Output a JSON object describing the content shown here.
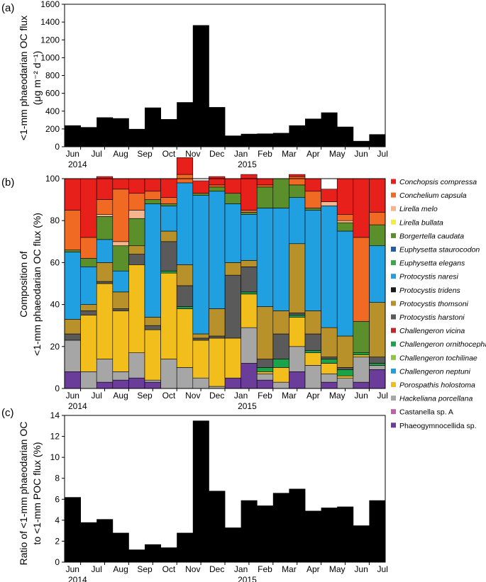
{
  "chart_data": [
    {
      "type": "bar",
      "panel_label": "(a)",
      "ylabel_lines": [
        "<1-mm phaeodarian OC flux",
        "(μg m⁻² d⁻¹)"
      ],
      "ylim": [
        0,
        1600
      ],
      "yticks": [
        0,
        200,
        400,
        600,
        800,
        1000,
        1200,
        1400,
        1600
      ],
      "xtick_labels": [
        "Jun",
        "Jul",
        "Aug",
        "Sep",
        "Oct",
        "Nov",
        "Dec",
        "Jan",
        "Feb",
        "Mar",
        "Apr",
        "May",
        "Jun",
        "Jul"
      ],
      "year_labels": [
        "2014",
        "2015"
      ],
      "periods": [
        {
          "start": 0.0,
          "end": 0.75,
          "value": 240
        },
        {
          "start": 0.75,
          "end": 1.5,
          "value": 220
        },
        {
          "start": 1.5,
          "end": 2.25,
          "value": 330
        },
        {
          "start": 2.25,
          "end": 3.0,
          "value": 320
        },
        {
          "start": 3.0,
          "end": 3.75,
          "value": 200
        },
        {
          "start": 3.75,
          "end": 4.5,
          "value": 440
        },
        {
          "start": 4.5,
          "end": 5.25,
          "value": 310
        },
        {
          "start": 5.25,
          "end": 6.0,
          "value": 500
        },
        {
          "start": 6.0,
          "end": 6.75,
          "value": 1365
        },
        {
          "start": 6.75,
          "end": 7.5,
          "value": 445
        },
        {
          "start": 7.5,
          "end": 8.25,
          "value": 125
        },
        {
          "start": 8.25,
          "end": 9.0,
          "value": 145
        },
        {
          "start": 9.0,
          "end": 9.75,
          "value": 148
        },
        {
          "start": 9.75,
          "end": 10.5,
          "value": 155
        },
        {
          "start": 10.5,
          "end": 11.25,
          "value": 240
        },
        {
          "start": 11.25,
          "end": 12.0,
          "value": 315
        },
        {
          "start": 12.0,
          "end": 12.75,
          "value": 385
        },
        {
          "start": 12.75,
          "end": 13.5,
          "value": 225
        },
        {
          "start": 13.5,
          "end": 14.25,
          "value": 65
        },
        {
          "start": 14.25,
          "end": 15.0,
          "value": 140
        }
      ]
    },
    {
      "type": "stacked-area",
      "panel_label": "(b)",
      "ylabel_lines": [
        "Composition of",
        "<1-mm phaeodarian OC flux (%)"
      ],
      "ylim": [
        0,
        100
      ],
      "yticks": [
        0,
        20,
        40,
        60,
        80,
        100
      ],
      "xtick_labels": [
        "Jun",
        "Jul",
        "Aug",
        "Sep",
        "Oct",
        "Nov",
        "Dec",
        "Jan",
        "Feb",
        "Mar",
        "Apr",
        "May",
        "Jun",
        "Jul"
      ],
      "year_labels": [
        "2014",
        "2015"
      ],
      "period_bounds": [
        0,
        0.75,
        1.5,
        2.25,
        3,
        3.75,
        4.5,
        5.25,
        6,
        6.75,
        7.5,
        8.25,
        9,
        9.75,
        10.5,
        11.25,
        12,
        12.75,
        13.5,
        14.25,
        15
      ],
      "series": [
        {
          "name": "Phaeogymnocellida sp.",
          "italic": false,
          "color": "#6a3d9a",
          "values": [
            8,
            0,
            3,
            4,
            5,
            3,
            0,
            0,
            0,
            0,
            5,
            12,
            4,
            0,
            8,
            0,
            3,
            0,
            3,
            9
          ]
        },
        {
          "name": "Castanella sp. A",
          "italic": false,
          "color": "#c060a8",
          "values": [
            0,
            0,
            0,
            0,
            0,
            0,
            0,
            0,
            0,
            0,
            0,
            0,
            0,
            0,
            0,
            0,
            0,
            0,
            0,
            0
          ]
        },
        {
          "name": "Hackeliana porcellana",
          "italic": true,
          "color": "#a6a6a6",
          "values": [
            15,
            8,
            11,
            4,
            12,
            1,
            14,
            10,
            5,
            1,
            0,
            17,
            3,
            3,
            12,
            11,
            4,
            5,
            12,
            2
          ]
        },
        {
          "name": "Porospathis holostoma",
          "italic": true,
          "color": "#f2be1c",
          "values": [
            0,
            27,
            36,
            29,
            42,
            24,
            41,
            28,
            18,
            23,
            19,
            16,
            1,
            7,
            14,
            6,
            5,
            1,
            1,
            0
          ]
        },
        {
          "name": "Challengeron neptuni",
          "italic": true,
          "color": "#1ea0dc",
          "values": [
            0,
            0,
            0,
            0,
            0,
            0,
            0,
            0,
            0,
            0,
            0,
            0,
            0,
            0,
            0,
            0,
            0,
            0,
            0,
            0
          ]
        },
        {
          "name": "Challengeron tochilinae",
          "italic": true,
          "color": "#8dc63f",
          "values": [
            0,
            0,
            0,
            0,
            0,
            0,
            0,
            0,
            0,
            0,
            0,
            0,
            0,
            0,
            0,
            0,
            0,
            0,
            0,
            0
          ]
        },
        {
          "name": "Challengeron ornithocephala",
          "italic": true,
          "color": "#1aa34a",
          "values": [
            0,
            0,
            0,
            0,
            0,
            0,
            1,
            1,
            0,
            0,
            0,
            1,
            2,
            4,
            1,
            1,
            2,
            3,
            1,
            1
          ]
        },
        {
          "name": "Challengeron vicina",
          "italic": true,
          "color": "#c1272d",
          "values": [
            0,
            0,
            0,
            0,
            0,
            0,
            0,
            0,
            0,
            0,
            0,
            0,
            0,
            0,
            0,
            0,
            0,
            0,
            0,
            0
          ]
        },
        {
          "name": "Protocystis harstoni",
          "italic": true,
          "color": "#5a5a5a",
          "values": [
            3,
            2,
            1,
            1,
            5,
            2,
            14,
            10,
            1,
            1,
            30,
            12,
            4,
            12,
            1,
            8,
            1,
            1,
            0,
            3
          ]
        },
        {
          "name": "Protocystis thomsoni",
          "italic": true,
          "color": "#b8912a",
          "values": [
            7,
            3,
            9,
            8,
            4,
            4,
            5,
            10,
            2,
            13,
            6,
            3,
            25,
            11,
            33,
            11,
            14,
            15,
            0,
            26
          ]
        },
        {
          "name": "Protocystis tridens",
          "italic": true,
          "color": "#1a1a1a",
          "values": [
            0,
            0,
            0,
            0,
            0,
            0,
            0,
            0,
            0,
            0,
            0,
            0,
            0,
            0,
            0,
            0,
            0,
            0,
            0,
            0
          ]
        },
        {
          "name": "Protocystis naresi",
          "italic": true,
          "color": "#20a0e0",
          "values": [
            32,
            18,
            11,
            10,
            0,
            54,
            12,
            39,
            66,
            56,
            28,
            22,
            47,
            49,
            22,
            48,
            58,
            50,
            0,
            27
          ]
        },
        {
          "name": "Euphysetta elegans",
          "italic": true,
          "color": "#3aa848",
          "values": [
            0,
            0,
            0,
            0,
            0,
            0,
            0,
            0,
            0,
            0,
            0,
            0,
            0,
            0,
            0,
            0,
            0,
            0,
            0,
            0
          ]
        },
        {
          "name": "Euphysetta staurocodon",
          "italic": true,
          "color": "#1f5fa8",
          "values": [
            0,
            0,
            0,
            0,
            0,
            0,
            0,
            0,
            0,
            0,
            0,
            0,
            0,
            0,
            0,
            0,
            0,
            0,
            0,
            0
          ]
        },
        {
          "name": "Borgertella caudata",
          "italic": true,
          "color": "#5b8f2c",
          "values": [
            1,
            4,
            11,
            12,
            13,
            2,
            1,
            0,
            1,
            2,
            5,
            1,
            10,
            14,
            6,
            1,
            0,
            4,
            15,
            10
          ]
        },
        {
          "name": "Lirella bullata",
          "italic": true,
          "color": "#f7ec3a",
          "values": [
            0,
            0,
            0,
            0,
            0,
            0,
            0,
            0,
            0,
            0,
            0,
            0,
            0,
            0,
            0,
            0,
            0,
            0,
            0,
            0
          ]
        },
        {
          "name": "Lirella melo",
          "italic": true,
          "color": "#f4b48c",
          "values": [
            0,
            0,
            1,
            2,
            4,
            0,
            0,
            0,
            0,
            0,
            0,
            0,
            0,
            0,
            0,
            0,
            2,
            1,
            0,
            0
          ]
        },
        {
          "name": "Conchelium capsula",
          "italic": true,
          "color": "#f06a23",
          "values": [
            19,
            10,
            7,
            25,
            8,
            4,
            3,
            4,
            0,
            1,
            0,
            1,
            1,
            0,
            4,
            8,
            0,
            3,
            40,
            6
          ]
        },
        {
          "name": "Conchopsis compressa",
          "italic": true,
          "color": "#e8201c",
          "values": [
            15,
            28,
            11,
            5,
            7,
            6,
            9,
            8,
            6,
            4,
            7,
            17,
            3,
            0,
            1,
            6,
            6,
            17,
            28,
            16
          ]
        }
      ]
    },
    {
      "type": "bar",
      "panel_label": "(c)",
      "ylabel_lines": [
        "Ratio of <1-mm phaeodarian OC",
        "to <1-mm POC flux (%)"
      ],
      "ylim": [
        0,
        14
      ],
      "yticks": [
        0,
        2,
        4,
        6,
        8,
        10,
        12,
        14
      ],
      "xtick_labels": [
        "Jun",
        "Jul",
        "Aug",
        "Sep",
        "Oct",
        "Nov",
        "Dec",
        "Jan",
        "Feb",
        "Mar",
        "Apr",
        "May",
        "Jun",
        "Jul"
      ],
      "year_labels": [
        "2014",
        "2015"
      ],
      "periods": [
        {
          "start": 0.0,
          "end": 0.75,
          "value": 6.2
        },
        {
          "start": 0.75,
          "end": 1.5,
          "value": 3.8
        },
        {
          "start": 1.5,
          "end": 2.25,
          "value": 4.1
        },
        {
          "start": 2.25,
          "end": 3.0,
          "value": 2.8
        },
        {
          "start": 3.0,
          "end": 3.75,
          "value": 1.2
        },
        {
          "start": 3.75,
          "end": 4.5,
          "value": 1.7
        },
        {
          "start": 4.5,
          "end": 5.25,
          "value": 1.4
        },
        {
          "start": 5.25,
          "end": 6.0,
          "value": 2.8
        },
        {
          "start": 6.0,
          "end": 6.75,
          "value": 13.5
        },
        {
          "start": 6.75,
          "end": 7.5,
          "value": 6.8
        },
        {
          "start": 7.5,
          "end": 8.25,
          "value": 3.3
        },
        {
          "start": 8.25,
          "end": 9.0,
          "value": 5.9
        },
        {
          "start": 9.0,
          "end": 9.75,
          "value": 5.4
        },
        {
          "start": 9.75,
          "end": 10.5,
          "value": 6.6
        },
        {
          "start": 10.5,
          "end": 11.25,
          "value": 7.0
        },
        {
          "start": 11.25,
          "end": 12.0,
          "value": 4.9
        },
        {
          "start": 12.0,
          "end": 12.75,
          "value": 5.2
        },
        {
          "start": 12.75,
          "end": 13.5,
          "value": 5.3
        },
        {
          "start": 13.5,
          "end": 14.25,
          "value": 3.5
        },
        {
          "start": 14.25,
          "end": 15.0,
          "value": 5.9
        }
      ]
    }
  ]
}
